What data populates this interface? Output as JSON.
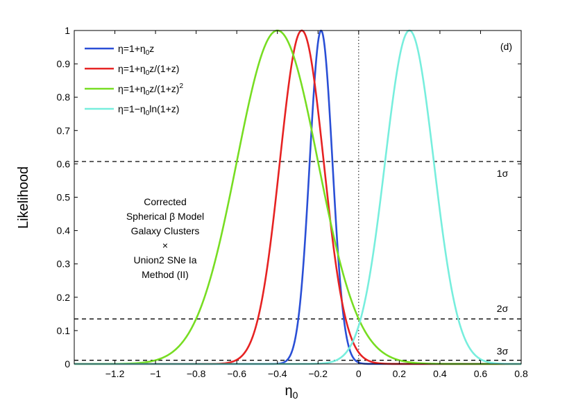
{
  "chart_data": {
    "type": "line",
    "ylabel": "Likelihood",
    "xlabel_main": "η",
    "xlabel_sub": "0",
    "xlim": [
      -1.4,
      0.8
    ],
    "ylim": [
      0,
      1
    ],
    "x_ticks": [
      -1.2,
      -1,
      -0.8,
      -0.6,
      -0.4,
      -0.2,
      0,
      0.2,
      0.4,
      0.6,
      0.8
    ],
    "x_tick_labels": [
      "−1.2",
      "−1",
      "−0.8",
      "−0.6",
      "−0.4",
      "−0.2",
      "0",
      "0.2",
      "0.4",
      "0.6",
      "0.8"
    ],
    "y_ticks": [
      0,
      0.1,
      0.2,
      0.3,
      0.4,
      0.5,
      0.6,
      0.7,
      0.8,
      0.9,
      1
    ],
    "y_tick_labels": [
      "0",
      "0.1",
      "0.2",
      "0.3",
      "0.4",
      "0.5",
      "0.6",
      "0.7",
      "0.8",
      "0.9",
      "1"
    ],
    "panel_label": "(d)",
    "series": [
      {
        "name": "η=1+η0z",
        "name_parts": [
          "η=1+η",
          "0",
          "z",
          ""
        ],
        "color": "#2a4fd6",
        "mean": -0.185,
        "sigma": 0.056
      },
      {
        "name": "η=1+η0z/(1+z)",
        "name_parts": [
          "η=1+η",
          "0",
          "z/(1+z)",
          ""
        ],
        "color": "#e62222",
        "mean": -0.28,
        "sigma": 0.108
      },
      {
        "name": "η=1+η0z/(1+z)2",
        "name_parts": [
          "η=1+η",
          "0",
          "z/(1+z)",
          "2"
        ],
        "color": "#77dd22",
        "mean": -0.4,
        "sigma": 0.2
      },
      {
        "name": "η=1−η0ln(1+z)",
        "name_parts": [
          "η=1−η",
          "0",
          "ln(1+z)",
          ""
        ],
        "color": "#77eedd",
        "mean": 0.25,
        "sigma": 0.12
      }
    ],
    "sigma_levels": [
      {
        "label": "1σ",
        "value": 0.607
      },
      {
        "label": "2σ",
        "value": 0.135
      },
      {
        "label": "3σ",
        "value": 0.011
      }
    ],
    "vertical_reference": 0,
    "annotation_lines": [
      "Corrected",
      "Spherical β Model",
      "Galaxy Clusters",
      "×",
      "Union2 SNe Ia",
      "Method (II)"
    ]
  }
}
